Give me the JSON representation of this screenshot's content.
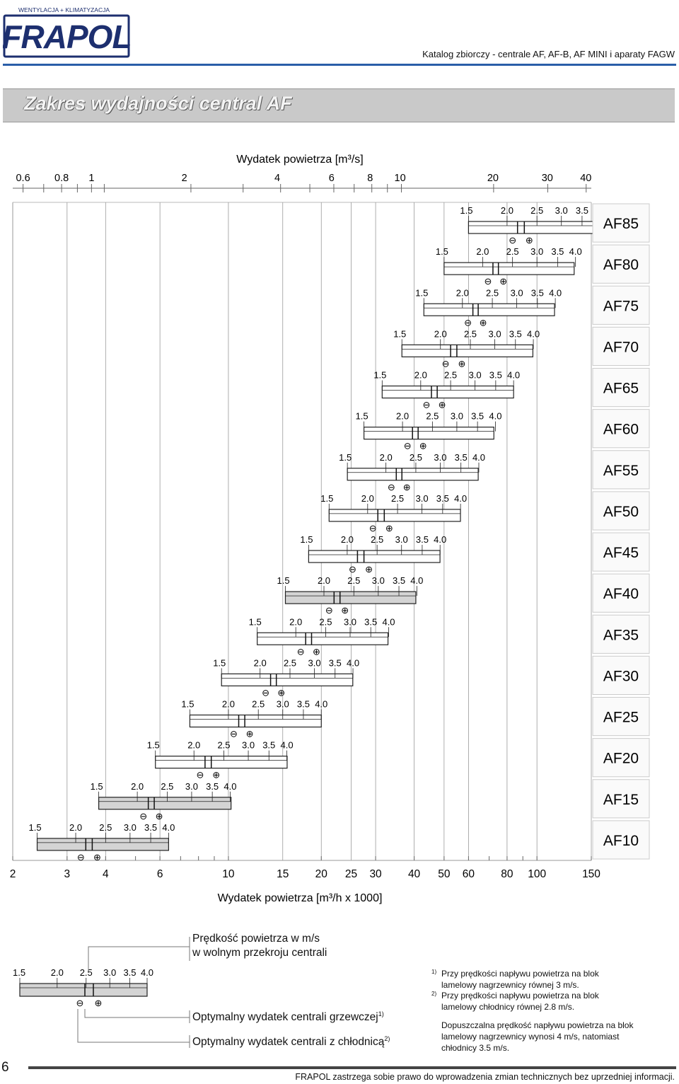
{
  "header": {
    "logo_top": "WENTYLACJA + KLIMATYZACJA",
    "logo_text": "FRAPOL",
    "catalog_title": "Katalog zbiorczy - centrale AF, AF-B, AF MINI i aparaty FAGW"
  },
  "section_title": "Zakres wydajności central AF",
  "chart_data": {
    "type": "range-bar",
    "title": "",
    "top_axis": {
      "label": "Wydatek powietrza [m³/s]",
      "ticks": [
        "0.6",
        "0.8",
        "1",
        "2",
        "4",
        "6",
        "8",
        "10",
        "20",
        "30",
        "40"
      ],
      "tick_values": [
        0.6,
        0.8,
        1,
        2,
        4,
        6,
        8,
        10,
        20,
        30,
        40
      ],
      "scale": "log"
    },
    "bottom_axis": {
      "label": "Wydatek powietrza [m³/h x 1000]",
      "ticks": [
        "2",
        "3",
        "4",
        "6",
        "10",
        "15",
        "20",
        "25",
        "30",
        "40",
        "50",
        "60",
        "80",
        "100",
        "150"
      ],
      "tick_values": [
        2,
        3,
        4,
        6,
        10,
        15,
        20,
        25,
        30,
        40,
        50,
        60,
        80,
        100,
        150
      ],
      "scale": "log",
      "range": [
        2,
        150
      ]
    },
    "velocity_labels": [
      "1.5",
      "2.0",
      "2.5",
      "3.0",
      "3.5",
      "4.0"
    ],
    "velocities": [
      1.5,
      2.0,
      2.5,
      3.0,
      3.5,
      4.0
    ],
    "minus_symbol": "⊖",
    "plus_symbol": "⊕",
    "units": [
      {
        "name": "AF85",
        "q_min": 60.0,
        "opt_heating": 86.5,
        "opt_cooling": 91.0,
        "q_max": 159.0,
        "shaded": false
      },
      {
        "name": "AF80",
        "q_min": 50.0,
        "opt_heating": 72.0,
        "opt_cooling": 75.0,
        "q_max": 132.0,
        "shaded": false
      },
      {
        "name": "AF75",
        "q_min": 43.0,
        "opt_heating": 62.0,
        "opt_cooling": 64.5,
        "q_max": 114.0,
        "shaded": false
      },
      {
        "name": "AF70",
        "q_min": 36.5,
        "opt_heating": 52.5,
        "opt_cooling": 55.0,
        "q_max": 97.0,
        "shaded": false
      },
      {
        "name": "AF65",
        "q_min": 31.5,
        "opt_heating": 45.5,
        "opt_cooling": 47.5,
        "q_max": 84.0,
        "shaded": false
      },
      {
        "name": "AF60",
        "q_min": 27.5,
        "opt_heating": 39.5,
        "opt_cooling": 41.2,
        "q_max": 72.5,
        "shaded": false
      },
      {
        "name": "AF55",
        "q_min": 24.3,
        "opt_heating": 35.0,
        "opt_cooling": 36.5,
        "q_max": 64.5,
        "shaded": false
      },
      {
        "name": "AF50",
        "q_min": 21.2,
        "opt_heating": 30.5,
        "opt_cooling": 32.0,
        "q_max": 56.5,
        "shaded": false
      },
      {
        "name": "AF45",
        "q_min": 18.2,
        "opt_heating": 26.2,
        "opt_cooling": 27.5,
        "q_max": 48.5,
        "shaded": false
      },
      {
        "name": "AF40",
        "q_min": 15.3,
        "opt_heating": 22.0,
        "opt_cooling": 23.0,
        "q_max": 40.5,
        "shaded": true
      },
      {
        "name": "AF35",
        "q_min": 12.4,
        "opt_heating": 17.8,
        "opt_cooling": 18.6,
        "q_max": 32.9,
        "shaded": false
      },
      {
        "name": "AF30",
        "q_min": 9.5,
        "opt_heating": 13.7,
        "opt_cooling": 14.3,
        "q_max": 25.3,
        "shaded": false
      },
      {
        "name": "AF25",
        "q_min": 7.5,
        "opt_heating": 10.8,
        "opt_cooling": 11.3,
        "q_max": 20.0,
        "shaded": false
      },
      {
        "name": "AF20",
        "q_min": 5.8,
        "opt_heating": 8.4,
        "opt_cooling": 8.8,
        "q_max": 15.5,
        "shaded": false
      },
      {
        "name": "AF15",
        "q_min": 3.8,
        "opt_heating": 5.5,
        "opt_cooling": 5.75,
        "q_max": 10.2,
        "shaded": true
      },
      {
        "name": "AF10",
        "q_min": 2.4,
        "opt_heating": 3.45,
        "opt_cooling": 3.62,
        "q_max": 6.4,
        "shaded": true
      }
    ]
  },
  "legend": {
    "velocity_title": "Prędkość powietrza w m/s",
    "velocity_subtitle": "w wolnym przekroju centrali",
    "heating": "Optymalny wydatek centrali grzewczej",
    "heating_mark": "1)",
    "cooling": "Optymalny wydatek centrali z chłodnicą",
    "cooling_mark": "2)"
  },
  "notes": {
    "n1_mark": "1)",
    "n1_line1": "Przy prędkości napływu powietrza na blok",
    "n1_line2": "lamelowy nagrzewnicy równej 3 m/s.",
    "n2_mark": "2)",
    "n2_line1": "Przy prędkości napływu powietrza na blok",
    "n2_line2": "lamelowy chłodnicy równej 2.8 m/s.",
    "n3_line1": "Dopuszczalna prędkość napływu powietrza na blok",
    "n3_line2": "lamelowy nagrzewnicy wynosi 4 m/s, natomiast",
    "n3_line3": "chłodnicy 3.5 m/s."
  },
  "footer": {
    "page_number": "6",
    "disclaimer": "FRAPOL zastrzega sobie prawo do wprowadzenia zmian technicznych bez uprzedniej informacji."
  }
}
